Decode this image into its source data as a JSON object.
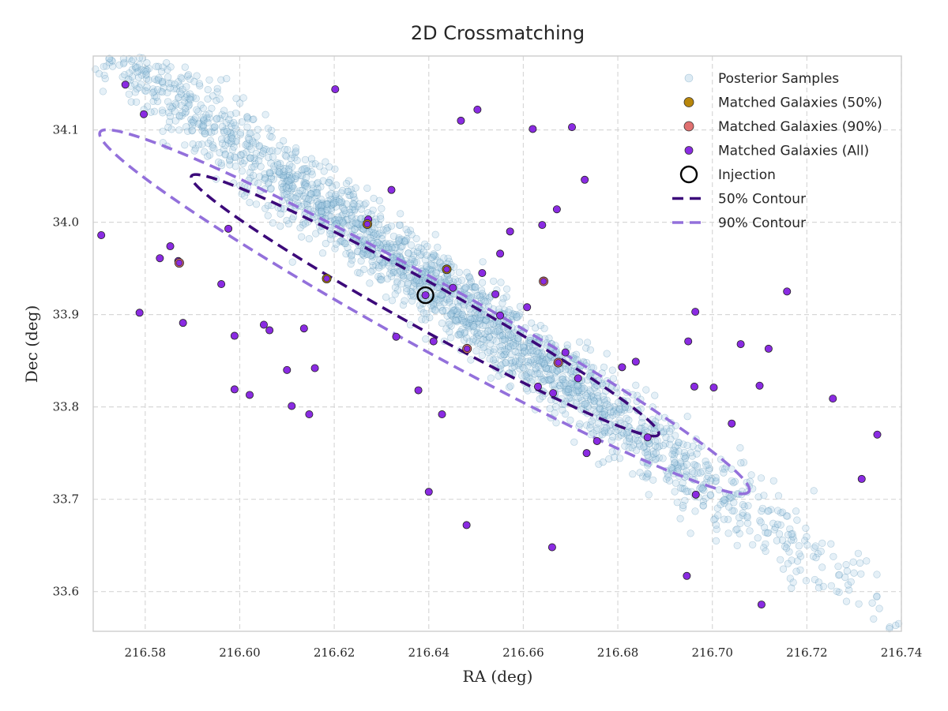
{
  "chart_data": {
    "type": "scatter",
    "title": "2D Crossmatching",
    "xlabel": "RA (deg)",
    "ylabel": "Dec (deg)",
    "xlim": [
      216.569,
      216.74
    ],
    "ylim": [
      33.557,
      34.18
    ],
    "x_ticks": [
      "216.58",
      "216.60",
      "216.62",
      "216.64",
      "216.66",
      "216.68",
      "216.70",
      "216.72",
      "216.74"
    ],
    "y_ticks": [
      "33.6",
      "33.7",
      "33.8",
      "33.9",
      "34.0",
      "34.1"
    ],
    "grid": true,
    "legend_position": "top-right",
    "colors": {
      "posterior": "#a9cde3",
      "posterior_edge": "#3d7ea6",
      "matched_50": "#b8860b",
      "matched_90": "#e07070",
      "matched_all": "#8a2be2",
      "contour_50": "#3c0a7a",
      "contour_90": "#9370db",
      "grid": "#d8d8d8"
    },
    "legend": [
      {
        "label": "Posterior Samples",
        "marker": "posterior"
      },
      {
        "label": "Matched Galaxies (50%)",
        "marker": "matched_50"
      },
      {
        "label": "Matched Galaxies (90%)",
        "marker": "matched_90"
      },
      {
        "label": "Matched Galaxies (All)",
        "marker": "matched_all"
      },
      {
        "label": "Injection",
        "marker": "injection"
      },
      {
        "label": "50% Contour",
        "marker": "contour_50"
      },
      {
        "label": "90% Contour",
        "marker": "contour_90"
      }
    ],
    "injection": [
      216.6393,
      33.921
    ],
    "posterior": {
      "center": [
        216.6415,
        33.93
      ],
      "sample_count": 2500,
      "sd_major_deg": 0.0545,
      "sd_minor_deg": 0.018,
      "orientation_deg": -36
    },
    "contour_50": {
      "center": [
        216.6392,
        33.91
      ],
      "semi_major_deg": 0.0565,
      "semi_minor_deg": 0.0245,
      "orientation_deg": -29
    },
    "contour_90": {
      "center": [
        216.6391,
        33.903
      ],
      "semi_major_deg": 0.0785,
      "semi_minor_deg": 0.0365,
      "orientation_deg": -29
    },
    "matched_galaxies_50": [
      [
        216.627,
        33.998
      ],
      [
        216.6438,
        33.949
      ],
      [
        216.6184,
        33.939
      ]
    ],
    "matched_galaxies_90": [
      [
        216.6643,
        33.936
      ],
      [
        216.6674,
        33.848
      ],
      [
        216.5872,
        33.956
      ],
      [
        216.6481,
        33.863
      ]
    ],
    "matched_galaxies_all": [
      [
        216.5758,
        34.149
      ],
      [
        216.5797,
        34.117
      ],
      [
        216.5872,
        33.956
      ],
      [
        216.6202,
        34.144
      ],
      [
        216.6378,
        33.818
      ],
      [
        216.6428,
        33.792
      ],
      [
        216.6513,
        33.945
      ],
      [
        216.6451,
        33.929
      ],
      [
        216.6541,
        33.922
      ],
      [
        216.6608,
        33.908
      ],
      [
        216.6503,
        34.122
      ],
      [
        216.6468,
        34.11
      ],
      [
        216.662,
        34.101
      ],
      [
        216.6572,
        33.99
      ],
      [
        216.6551,
        33.966
      ],
      [
        216.6663,
        33.815
      ],
      [
        216.6716,
        33.831
      ],
      [
        216.6703,
        34.103
      ],
      [
        216.6671,
        34.014
      ],
      [
        216.6689,
        33.859
      ],
      [
        216.6393,
        33.921
      ],
      [
        216.664,
        33.997
      ],
      [
        216.673,
        34.046
      ],
      [
        216.5707,
        33.986
      ],
      [
        216.5853,
        33.974
      ],
      [
        216.5976,
        33.993
      ],
      [
        216.587,
        33.958
      ],
      [
        216.5961,
        33.933
      ],
      [
        216.5788,
        33.902
      ],
      [
        216.5831,
        33.961
      ],
      [
        216.6063,
        33.883
      ],
      [
        216.61,
        33.84
      ],
      [
        216.6136,
        33.885
      ],
      [
        216.6147,
        33.792
      ],
      [
        216.6321,
        34.035
      ],
      [
        216.6272,
        34.003
      ],
      [
        216.6331,
        33.876
      ],
      [
        216.641,
        33.871
      ],
      [
        216.6551,
        33.899
      ],
      [
        216.6631,
        33.822
      ],
      [
        216.6756,
        33.763
      ],
      [
        216.6809,
        33.843
      ],
      [
        216.6949,
        33.871
      ],
      [
        216.6962,
        33.822
      ],
      [
        216.706,
        33.868
      ],
      [
        216.7119,
        33.863
      ],
      [
        216.7158,
        33.925
      ],
      [
        216.6964,
        33.903
      ],
      [
        216.6838,
        33.849
      ],
      [
        216.7003,
        33.821
      ],
      [
        216.71,
        33.823
      ],
      [
        216.7041,
        33.782
      ],
      [
        216.6965,
        33.705
      ],
      [
        216.6946,
        33.617
      ],
      [
        216.6863,
        33.767
      ],
      [
        216.6734,
        33.75
      ],
      [
        216.6661,
        33.648
      ],
      [
        216.648,
        33.672
      ],
      [
        216.64,
        33.708
      ],
      [
        216.7104,
        33.586
      ],
      [
        216.7255,
        33.809
      ],
      [
        216.7349,
        33.77
      ],
      [
        216.7316,
        33.722
      ],
      [
        216.588,
        33.891
      ],
      [
        216.6051,
        33.889
      ],
      [
        216.6159,
        33.842
      ],
      [
        216.611,
        33.801
      ],
      [
        216.6021,
        33.813
      ],
      [
        216.5989,
        33.877
      ],
      [
        216.5989,
        33.819
      ]
    ]
  }
}
